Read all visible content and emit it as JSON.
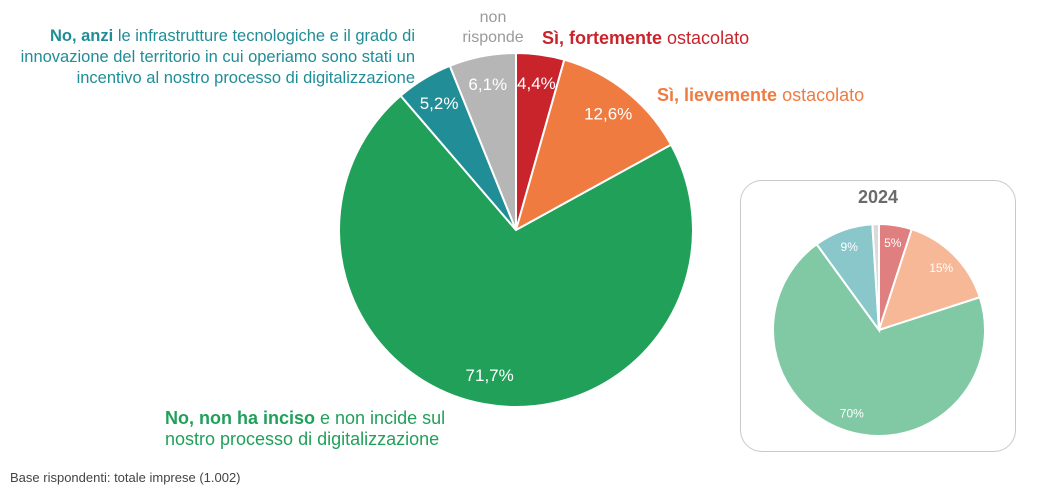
{
  "chart_data": [
    {
      "type": "pie",
      "title": "",
      "slices": [
        {
          "key": "forte",
          "value": 4.4,
          "value_label": "4,4%",
          "color": "#c9242b",
          "bold_text": "Sì, fortemente",
          "rest_text": " ostacolato"
        },
        {
          "key": "lieve",
          "value": 12.6,
          "value_label": "12,6%",
          "color": "#ef7b41",
          "bold_text": "Sì, lievemente",
          "rest_text": " ostacolato"
        },
        {
          "key": "noninciso",
          "value": 71.7,
          "value_label": "71,7%",
          "color": "#21a05a",
          "bold_text": "No, non ha inciso",
          "rest_text": " e non incide sul nostro processo di digitalizzazione"
        },
        {
          "key": "anzi",
          "value": 5.2,
          "value_label": "5,2%",
          "color": "#208d97",
          "bold_text": "No, anzi",
          "rest_text": " le infrastrutture tecnologiche e il grado di innovazione del territorio in cui operiamo sono stati un incentivo al nostro processo di digitalizzazione"
        },
        {
          "key": "nonrisponde",
          "value": 6.1,
          "value_label": "6,1%",
          "color": "#b6b6b6",
          "bold_text": "",
          "rest_text": "non risponde"
        }
      ]
    },
    {
      "type": "pie",
      "title": "2024",
      "slices": [
        {
          "key": "forte",
          "value": 5,
          "value_label": "5%",
          "color": "#e07f80"
        },
        {
          "key": "lieve",
          "value": 15,
          "value_label": "15%",
          "color": "#f7b897"
        },
        {
          "key": "noninciso",
          "value": 70,
          "value_label": "70%",
          "color": "#80c9a4"
        },
        {
          "key": "anzi",
          "value": 9,
          "value_label": "9%",
          "color": "#8ac7cb"
        },
        {
          "key": "nonrisponde",
          "value": 1,
          "value_label": "",
          "color": "#dadada"
        }
      ]
    }
  ],
  "footnote": "Base rispondenti: totale imprese (1.002)"
}
